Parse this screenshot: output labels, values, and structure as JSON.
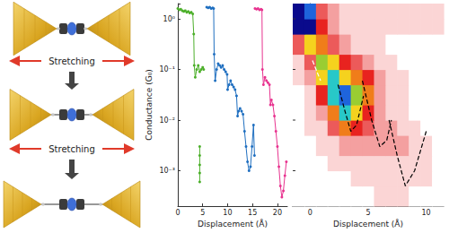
{
  "diagram": {
    "arrows": [
      "Stretching",
      "Stretching"
    ]
  },
  "chart_data": [
    {
      "type": "line",
      "xlabel": "Displacement (Å)",
      "ylabel": "Conductance (G₀)",
      "xlim": [
        0,
        22
      ],
      "xticks": [
        0,
        5,
        10,
        15,
        20
      ],
      "ylim": [
        0.0002,
        2
      ],
      "yticks": [
        {
          "value": 0.001,
          "label": "10⁻³"
        },
        {
          "value": 0.01,
          "label": "10⁻²"
        },
        {
          "value": 0.1,
          "label": "10⁻¹"
        },
        {
          "value": 1,
          "label": "10⁰"
        }
      ],
      "log": "y",
      "marker": "circle",
      "line_style": "solid",
      "series": [
        {
          "color": "#4caf2a",
          "x": [
            0,
            0.3,
            0.6,
            0.9,
            1.2,
            1.5,
            1.8,
            2.1,
            2.4,
            2.7,
            3.0,
            3.2,
            3.3,
            3.5,
            3.8,
            4.1,
            4.4,
            4.7,
            5.0,
            5.2,
            null,
            4.4,
            4.4,
            4.4,
            4.4,
            4.4
          ],
          "values": [
            1.6,
            1.5,
            1.55,
            1.45,
            1.4,
            1.45,
            1.35,
            1.4,
            1.3,
            1.35,
            1.25,
            0.5,
            0.12,
            0.07,
            0.1,
            0.12,
            0.09,
            0.1,
            0.11,
            0.1,
            null,
            0.003,
            0.002,
            0.0013,
            0.0009,
            0.0006
          ]
        },
        {
          "color": "#1f6fc0",
          "x": [
            5.8,
            6.1,
            6.4,
            6.7,
            7.0,
            7.2,
            7.3,
            7.5,
            7.8,
            8.1,
            8.4,
            8.7,
            9.0,
            9.3,
            9.6,
            9.9,
            10.0,
            10.3,
            10.6,
            10.9,
            11.2,
            11.5,
            11.8,
            12.0,
            12.2,
            12.5,
            12.8,
            13.1,
            13.4,
            13.7,
            14.0,
            14.3,
            14.6,
            14.9,
            15.2,
            15.4
          ],
          "values": [
            1.7,
            1.65,
            1.7,
            1.6,
            1.65,
            1.6,
            0.2,
            0.06,
            0.1,
            0.13,
            0.12,
            0.11,
            0.12,
            0.1,
            0.09,
            0.08,
            0.04,
            0.05,
            0.06,
            0.05,
            0.045,
            0.04,
            0.03,
            0.012,
            0.015,
            0.017,
            0.015,
            0.013,
            0.006,
            0.003,
            0.0015,
            0.001,
            0.0012,
            0.003,
            0.008,
            0.002
          ]
        },
        {
          "color": "#e8338f",
          "x": [
            15.5,
            15.8,
            16.1,
            16.4,
            16.7,
            16.9,
            17.0,
            17.2,
            17.5,
            17.8,
            18.1,
            18.4,
            18.6,
            18.8,
            19.1,
            19.4,
            19.7,
            20.0,
            20.3,
            20.6,
            20.9,
            21.2,
            21.5,
            21.8
          ],
          "values": [
            1.6,
            1.55,
            1.6,
            1.5,
            1.55,
            1.5,
            0.1,
            0.05,
            0.07,
            0.06,
            0.055,
            0.05,
            0.02,
            0.025,
            0.02,
            0.012,
            0.006,
            0.003,
            0.0012,
            0.0005,
            0.0003,
            0.0004,
            0.0008,
            0.0015
          ]
        }
      ]
    },
    {
      "type": "heatmap",
      "xlabel": "Displacement (Å)",
      "xlim": [
        -1.5,
        11.5
      ],
      "xticks": [
        0,
        5,
        10
      ],
      "ylim": [
        0.0002,
        2
      ],
      "yticks": [
        0.001,
        0.01,
        0.1,
        1
      ],
      "log": "y",
      "tick_labels": "x",
      "x_edges": [
        -1.5,
        -0.5,
        0.5,
        1.5,
        2.5,
        3.5,
        4.5,
        5.5,
        6.5,
        7.5,
        8.5,
        9.5,
        10.5,
        11.5
      ],
      "y_edges": [
        0.0002,
        0.0005,
        0.001,
        0.002,
        0.005,
        0.01,
        0.02,
        0.05,
        0.1,
        0.2,
        0.5,
        1,
        2
      ],
      "zlim": [
        0,
        10
      ],
      "counts": [
        [
          0,
          0,
          0,
          0,
          0,
          0,
          0,
          1,
          1,
          1,
          0,
          0,
          0
        ],
        [
          0,
          0,
          0,
          0,
          0,
          1,
          1,
          1,
          1,
          1,
          1,
          1,
          0
        ],
        [
          0,
          0,
          0,
          1,
          1,
          1,
          1,
          1,
          1,
          1,
          1,
          1,
          0
        ],
        [
          0,
          0,
          1,
          1,
          2,
          2,
          2,
          2,
          2,
          2,
          1,
          1,
          0
        ],
        [
          0,
          1,
          1,
          3,
          5,
          4,
          3,
          2,
          2,
          1,
          1,
          0,
          0
        ],
        [
          0,
          1,
          2,
          5,
          8,
          6,
          4,
          2,
          1,
          1,
          0,
          0,
          0
        ],
        [
          0,
          1,
          4,
          8,
          9,
          7,
          5,
          2,
          1,
          1,
          0,
          0,
          0
        ],
        [
          1,
          2,
          6,
          8,
          6,
          5,
          4,
          2,
          1,
          1,
          0,
          0,
          0
        ],
        [
          1,
          3,
          7,
          6,
          4,
          3,
          2,
          1,
          1,
          0,
          0,
          0,
          0
        ],
        [
          3,
          6,
          5,
          3,
          2,
          1,
          1,
          1,
          0,
          0,
          0,
          0,
          0
        ],
        [
          10,
          10,
          4,
          2,
          1,
          1,
          1,
          1,
          1,
          1,
          1,
          1,
          1
        ],
        [
          10,
          9,
          3,
          2,
          1,
          1,
          1,
          1,
          1,
          1,
          1,
          1,
          1
        ]
      ],
      "overlays": [
        {
          "color": "#ffffff",
          "line_style": "dashed",
          "x": [
            0.2,
            0.9
          ],
          "values": [
            0.15,
            0.06
          ]
        },
        {
          "color": "#000000",
          "line_style": "dashed",
          "x": [
            2.4,
            3.0,
            3.5,
            4.0,
            4.6
          ],
          "values": [
            0.05,
            0.015,
            0.006,
            0.008,
            0.03
          ]
        },
        {
          "color": "#000000",
          "line_style": "dashed",
          "x": [
            4.5,
            5.3,
            6.0,
            6.6,
            7.0
          ],
          "values": [
            0.06,
            0.01,
            0.003,
            0.004,
            0.01
          ]
        },
        {
          "color": "#000000",
          "line_style": "dashed",
          "x": [
            6.8,
            7.5,
            8.2,
            9.0,
            10.0
          ],
          "values": [
            0.01,
            0.002,
            0.0005,
            0.001,
            0.006
          ]
        }
      ]
    }
  ]
}
